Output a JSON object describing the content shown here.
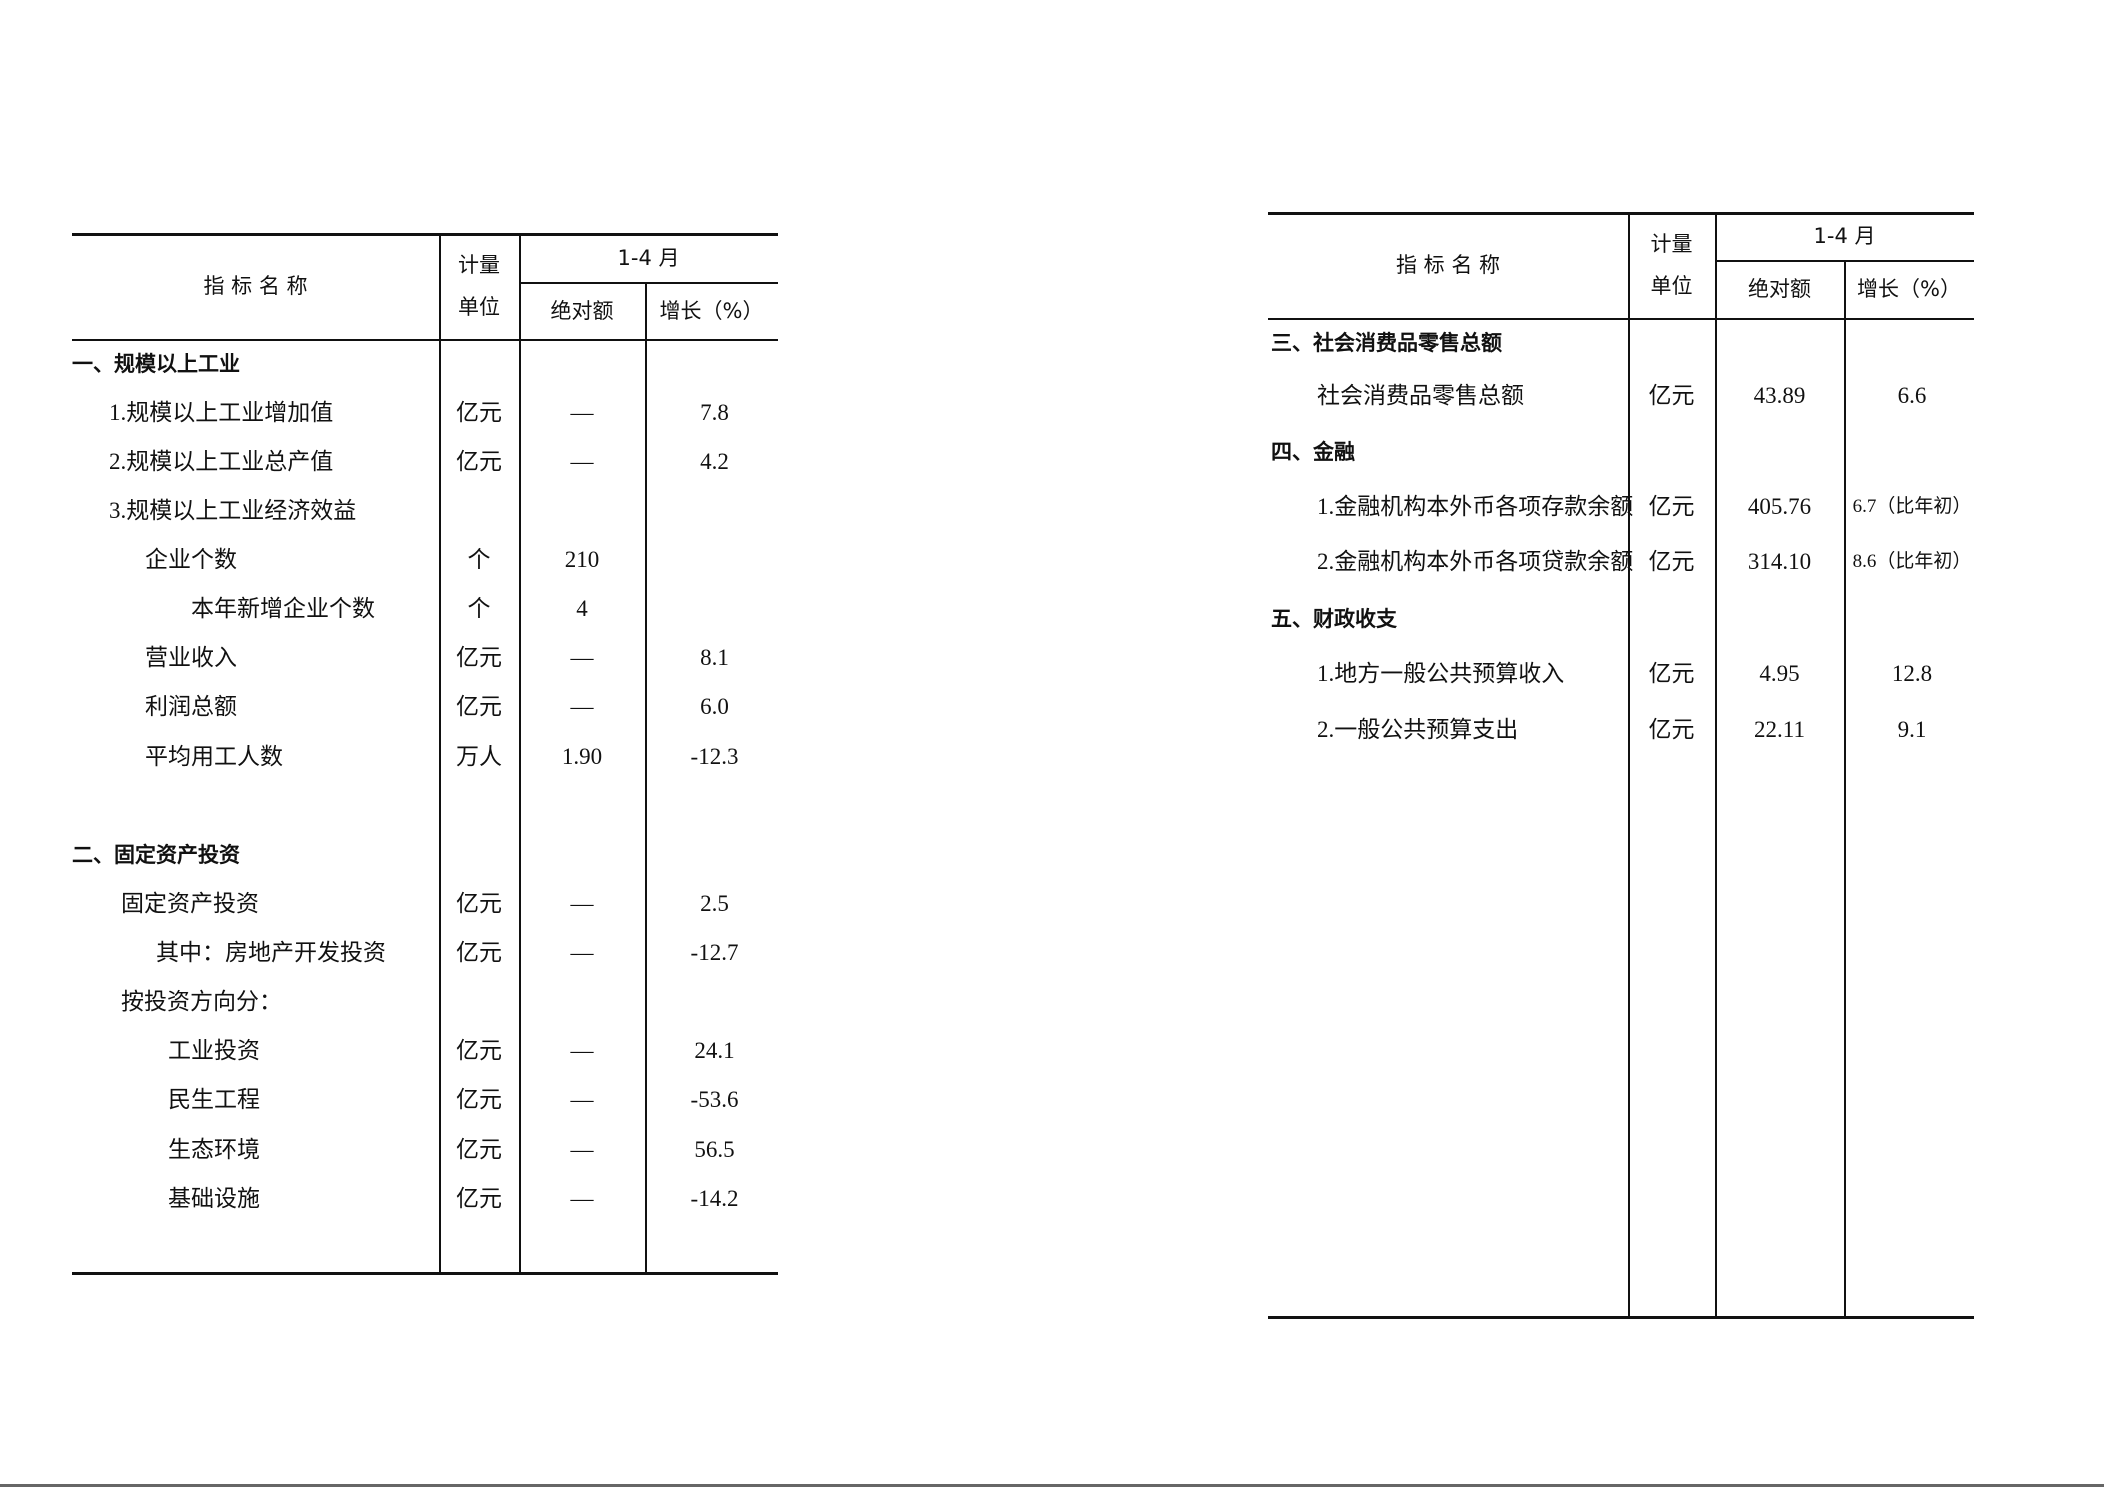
{
  "left_table": {
    "header": {
      "name": "指 标 名 称",
      "unit_top": "计量",
      "unit_bottom": "单位",
      "period": "1-4 月",
      "abs": "绝对额",
      "growth": "增长（%）"
    },
    "rows": [
      {
        "name": "一、规模以上工业",
        "unit": "",
        "abs": "",
        "growth": "",
        "section": true
      },
      {
        "name": "1.规模以上工业增加值",
        "unit": "亿元",
        "abs": "—",
        "growth": "7.8"
      },
      {
        "name": "2.规模以上工业总产值",
        "unit": "亿元",
        "abs": "—",
        "growth": "4.2"
      },
      {
        "name": "3.规模以上工业经济效益",
        "unit": "",
        "abs": "",
        "growth": ""
      },
      {
        "name": "企业个数",
        "unit": "个",
        "abs": "210",
        "growth": ""
      },
      {
        "name": "本年新增企业个数",
        "unit": "个",
        "abs": "4",
        "growth": ""
      },
      {
        "name": "营业收入",
        "unit": "亿元",
        "abs": "—",
        "growth": "8.1"
      },
      {
        "name": "利润总额",
        "unit": "亿元",
        "abs": "—",
        "growth": "6.0"
      },
      {
        "name": "平均用工人数",
        "unit": "万人",
        "abs": "1.90",
        "growth": "-12.3"
      },
      {
        "name": "二、固定资产投资",
        "unit": "",
        "abs": "",
        "growth": "",
        "section": true
      },
      {
        "name": "固定资产投资",
        "unit": "亿元",
        "abs": "—",
        "growth": "2.5"
      },
      {
        "name": "其中：房地产开发投资",
        "unit": "亿元",
        "abs": "—",
        "growth": "-12.7"
      },
      {
        "name": "按投资方向分：",
        "unit": "",
        "abs": "",
        "growth": ""
      },
      {
        "name": "工业投资",
        "unit": "亿元",
        "abs": "—",
        "growth": "24.1"
      },
      {
        "name": "民生工程",
        "unit": "亿元",
        "abs": "—",
        "growth": "-53.6"
      },
      {
        "name": "生态环境",
        "unit": "亿元",
        "abs": "—",
        "growth": "56.5"
      },
      {
        "name": "基础设施",
        "unit": "亿元",
        "abs": "—",
        "growth": "-14.2"
      }
    ]
  },
  "right_table": {
    "header": {
      "name": "指 标 名 称",
      "unit_top": "计量",
      "unit_bottom": "单位",
      "period": "1-4 月",
      "abs": "绝对额",
      "growth": "增长（%）"
    },
    "rows": [
      {
        "name": "三、社会消费品零售总额",
        "unit": "",
        "abs": "",
        "growth": "",
        "section": true
      },
      {
        "name": "社会消费品零售总额",
        "unit": "亿元",
        "abs": "43.89",
        "growth": "6.6"
      },
      {
        "name": "四、金融",
        "unit": "",
        "abs": "",
        "growth": "",
        "section": true
      },
      {
        "name": "1.金融机构本外币各项存款余额",
        "unit": "亿元",
        "abs": "405.76",
        "growth": "6.7（比年初）"
      },
      {
        "name": "2.金融机构本外币各项贷款余额",
        "unit": "亿元",
        "abs": "314.10",
        "growth": "8.6（比年初）"
      },
      {
        "name": "五、财政收支",
        "unit": "",
        "abs": "",
        "growth": "",
        "section": true
      },
      {
        "name": "1.地方一般公共预算收入",
        "unit": "亿元",
        "abs": "4.95",
        "growth": "12.8"
      },
      {
        "name": "2.一般公共预算支出",
        "unit": "亿元",
        "abs": "22.11",
        "growth": "9.1"
      }
    ]
  }
}
